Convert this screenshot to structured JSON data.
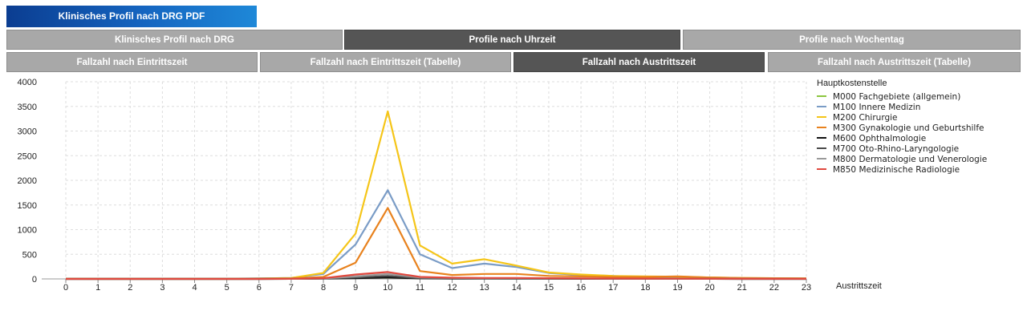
{
  "pdf_button": {
    "label": "Klinisches Profil nach DRG PDF"
  },
  "tabs_row1": [
    {
      "label": "Klinisches Profil nach DRG",
      "active": false
    },
    {
      "label": "Profile nach Uhrzeit",
      "active": true
    },
    {
      "label": "Profile nach Wochentag",
      "active": false
    }
  ],
  "tabs_row2": [
    {
      "label": "Fallzahl nach Eintrittszeit",
      "active": false
    },
    {
      "label": "Fallzahl nach Eintrittszeit (Tabelle)",
      "active": false
    },
    {
      "label": "Fallzahl nach Austrittszeit",
      "active": true
    },
    {
      "label": "Fallzahl nach Austrittszeit (Tabelle)",
      "active": false
    }
  ],
  "chart_data": {
    "type": "line",
    "title": "",
    "xlabel": "Austrittszeit",
    "ylabel": "",
    "x": [
      0,
      1,
      2,
      3,
      4,
      5,
      6,
      7,
      8,
      9,
      10,
      11,
      12,
      13,
      14,
      15,
      16,
      17,
      18,
      19,
      20,
      21,
      22,
      23
    ],
    "xlim": [
      0,
      23
    ],
    "ylim": [
      0,
      4000
    ],
    "yticks": [
      0,
      500,
      1000,
      1500,
      2000,
      2500,
      3000,
      3500,
      4000
    ],
    "grid": true,
    "legend_title": "Hauptkostenstelle",
    "legend_position": "right",
    "series": [
      {
        "name": "M000 Fachgebiete (allgemein)",
        "color": "#8cc63f",
        "values": [
          2,
          0,
          0,
          0,
          0,
          0,
          1,
          3,
          10,
          20,
          30,
          15,
          10,
          12,
          10,
          8,
          6,
          5,
          4,
          3,
          2,
          2,
          1,
          1
        ]
      },
      {
        "name": "M100 Innere Medizin",
        "color": "#7a9cc6",
        "values": [
          5,
          3,
          3,
          2,
          3,
          5,
          10,
          20,
          100,
          700,
          1800,
          500,
          220,
          310,
          240,
          120,
          80,
          60,
          40,
          30,
          25,
          15,
          10,
          8
        ]
      },
      {
        "name": "M200 Chirurgie",
        "color": "#f5c518",
        "values": [
          5,
          3,
          2,
          2,
          2,
          3,
          8,
          20,
          120,
          920,
          3400,
          680,
          310,
          400,
          270,
          130,
          90,
          60,
          50,
          45,
          30,
          20,
          15,
          10
        ]
      },
      {
        "name": "M300 Gynakologie und Geburtshilfe",
        "color": "#e8821e",
        "values": [
          3,
          2,
          2,
          2,
          2,
          3,
          5,
          10,
          40,
          330,
          1440,
          160,
          80,
          100,
          100,
          60,
          50,
          40,
          40,
          50,
          30,
          20,
          15,
          10
        ]
      },
      {
        "name": "M600 Ophthalmologie",
        "color": "#111111",
        "values": [
          0,
          0,
          0,
          0,
          0,
          0,
          0,
          1,
          5,
          15,
          30,
          10,
          5,
          5,
          4,
          3,
          2,
          2,
          1,
          1,
          1,
          0,
          0,
          0
        ]
      },
      {
        "name": "M700 Oto-Rhino-Laryngologie",
        "color": "#4a4a4a",
        "values": [
          0,
          0,
          0,
          0,
          0,
          0,
          0,
          2,
          8,
          30,
          60,
          15,
          8,
          8,
          6,
          4,
          3,
          2,
          2,
          1,
          1,
          0,
          0,
          0
        ]
      },
      {
        "name": "M800 Dermatologie und Venerologie",
        "color": "#9a9a9a",
        "values": [
          0,
          0,
          0,
          0,
          0,
          0,
          0,
          2,
          10,
          50,
          100,
          30,
          20,
          15,
          12,
          10,
          8,
          6,
          5,
          4,
          3,
          2,
          1,
          1
        ]
      },
      {
        "name": "M850 Medizinische Radiologie",
        "color": "#e0483e",
        "values": [
          0,
          0,
          0,
          0,
          0,
          0,
          0,
          3,
          15,
          90,
          140,
          40,
          25,
          20,
          20,
          15,
          10,
          8,
          6,
          5,
          4,
          3,
          2,
          1
        ]
      }
    ]
  }
}
